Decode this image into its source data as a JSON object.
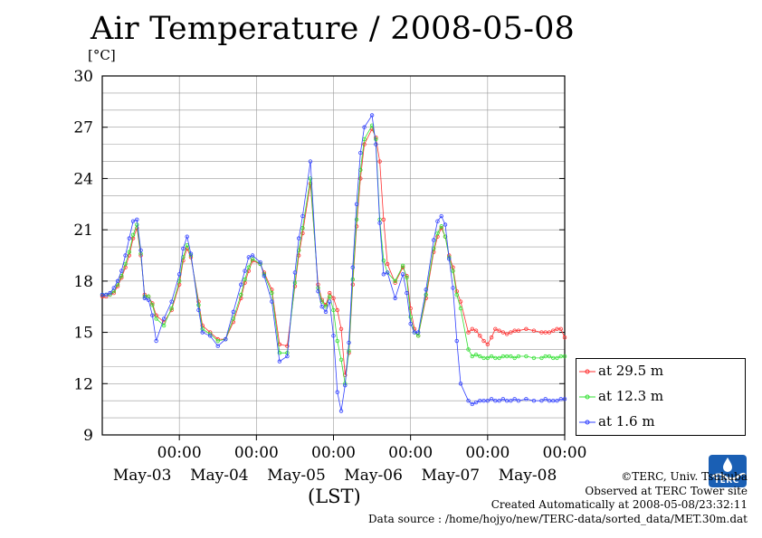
{
  "chart_data": {
    "type": "line",
    "title": "Air Temperature / 2008-05-08",
    "ylabel": "[°C]",
    "xlabel": "(LST)",
    "ylim": [
      9,
      30
    ],
    "yticks": [
      9,
      12,
      15,
      18,
      21,
      24,
      27,
      30
    ],
    "xlim": [
      0,
      6
    ],
    "grid": true,
    "legend_position": "right-bottom",
    "x_units": "days since 2008-05-02 12:00 LST",
    "xticks": [
      {
        "x": 1,
        "label": "00:00",
        "date": "May-03"
      },
      {
        "x": 2,
        "label": "00:00",
        "date": "May-04"
      },
      {
        "x": 3,
        "label": "00:00",
        "date": "May-05"
      },
      {
        "x": 4,
        "label": "00:00",
        "date": "May-06"
      },
      {
        "x": 5,
        "label": "00:00",
        "date": "May-07"
      },
      {
        "x": 6,
        "label": "00:00",
        "date": "May-08"
      }
    ],
    "series": [
      {
        "name": "at 29.5 m",
        "color": "#ff3030",
        "x": [
          0.0,
          0.05,
          0.1,
          0.15,
          0.2,
          0.25,
          0.3,
          0.35,
          0.4,
          0.45,
          0.5,
          0.55,
          0.6,
          0.65,
          0.7,
          0.8,
          0.9,
          1.0,
          1.05,
          1.1,
          1.15,
          1.25,
          1.3,
          1.4,
          1.5,
          1.6,
          1.7,
          1.8,
          1.85,
          1.9,
          1.95,
          2.05,
          2.1,
          2.2,
          2.3,
          2.4,
          2.5,
          2.55,
          2.6,
          2.7,
          2.8,
          2.85,
          2.9,
          2.95,
          3.0,
          3.05,
          3.1,
          3.15,
          3.2,
          3.25,
          3.3,
          3.35,
          3.4,
          3.5,
          3.55,
          3.6,
          3.65,
          3.7,
          3.8,
          3.9,
          3.95,
          4.0,
          4.05,
          4.1,
          4.2,
          4.3,
          4.35,
          4.4,
          4.45,
          4.5,
          4.55,
          4.6,
          4.65,
          4.75,
          4.8,
          4.85,
          4.9,
          4.95,
          5.0,
          5.05,
          5.1,
          5.15,
          5.2,
          5.25,
          5.3,
          5.35,
          5.4,
          5.5,
          5.6,
          5.7,
          5.75,
          5.8,
          5.85,
          5.9,
          5.95,
          6.0
        ],
        "y": [
          17.1,
          17.1,
          17.2,
          17.3,
          17.7,
          18.2,
          18.8,
          19.5,
          20.5,
          21.1,
          19.5,
          17.2,
          17.1,
          16.7,
          16.0,
          15.6,
          16.3,
          17.8,
          19.2,
          19.9,
          19.4,
          16.8,
          15.4,
          15.0,
          14.6,
          14.6,
          15.6,
          17.0,
          17.9,
          18.6,
          19.2,
          19.0,
          18.5,
          17.5,
          14.3,
          14.2,
          17.7,
          19.5,
          20.8,
          23.7,
          17.8,
          16.9,
          16.6,
          17.3,
          17.0,
          16.3,
          15.2,
          12.5,
          13.8,
          17.8,
          21.2,
          24.0,
          26.0,
          26.9,
          26.4,
          25.0,
          21.6,
          19.0,
          17.9,
          18.8,
          18.3,
          16.4,
          15.2,
          14.8,
          17.0,
          19.7,
          20.6,
          21.1,
          20.6,
          19.5,
          18.8,
          17.4,
          16.8,
          15.0,
          15.2,
          15.1,
          14.8,
          14.5,
          14.3,
          14.7,
          15.2,
          15.1,
          15.0,
          14.9,
          15.0,
          15.1,
          15.1,
          15.2,
          15.1,
          15.0,
          15.0,
          15.0,
          15.1,
          15.2,
          15.2,
          14.7
        ]
      },
      {
        "name": "at 12.3 m",
        "color": "#30e030",
        "x": [
          0.0,
          0.05,
          0.1,
          0.15,
          0.2,
          0.25,
          0.3,
          0.35,
          0.4,
          0.45,
          0.5,
          0.55,
          0.6,
          0.65,
          0.7,
          0.8,
          0.9,
          1.0,
          1.05,
          1.1,
          1.15,
          1.25,
          1.3,
          1.4,
          1.5,
          1.6,
          1.7,
          1.8,
          1.85,
          1.9,
          1.95,
          2.05,
          2.1,
          2.2,
          2.3,
          2.4,
          2.5,
          2.55,
          2.6,
          2.7,
          2.8,
          2.85,
          2.9,
          2.95,
          3.0,
          3.05,
          3.1,
          3.15,
          3.2,
          3.25,
          3.3,
          3.35,
          3.4,
          3.5,
          3.55,
          3.6,
          3.65,
          3.7,
          3.8,
          3.9,
          3.95,
          4.0,
          4.05,
          4.1,
          4.2,
          4.3,
          4.35,
          4.4,
          4.45,
          4.5,
          4.55,
          4.6,
          4.65,
          4.75,
          4.8,
          4.85,
          4.9,
          4.95,
          5.0,
          5.05,
          5.1,
          5.15,
          5.2,
          5.25,
          5.3,
          5.35,
          5.4,
          5.5,
          5.6,
          5.7,
          5.75,
          5.8,
          5.85,
          5.9,
          5.95,
          6.0
        ],
        "y": [
          17.2,
          17.2,
          17.2,
          17.4,
          17.8,
          18.3,
          19.0,
          19.7,
          20.7,
          21.3,
          19.6,
          17.1,
          17.1,
          16.6,
          15.8,
          15.4,
          16.4,
          18.0,
          19.4,
          20.1,
          19.5,
          16.6,
          15.2,
          14.9,
          14.5,
          14.6,
          15.8,
          17.2,
          18.1,
          18.8,
          19.3,
          19.0,
          18.4,
          17.3,
          13.8,
          13.8,
          17.9,
          19.8,
          21.1,
          24.0,
          17.6,
          16.8,
          16.5,
          17.1,
          16.3,
          14.5,
          13.4,
          12.0,
          13.9,
          18.1,
          21.6,
          24.5,
          26.3,
          27.1,
          26.3,
          21.6,
          19.2,
          18.5,
          18.0,
          18.9,
          18.2,
          15.9,
          15.0,
          14.8,
          17.2,
          19.9,
          20.8,
          21.2,
          20.6,
          19.4,
          18.6,
          17.2,
          16.4,
          14.0,
          13.6,
          13.7,
          13.6,
          13.5,
          13.5,
          13.6,
          13.5,
          13.5,
          13.6,
          13.6,
          13.6,
          13.5,
          13.6,
          13.6,
          13.5,
          13.5,
          13.6,
          13.6,
          13.5,
          13.5,
          13.6,
          13.6
        ]
      },
      {
        "name": "at 1.6 m",
        "color": "#3040ff",
        "x": [
          0.0,
          0.05,
          0.1,
          0.15,
          0.2,
          0.25,
          0.3,
          0.35,
          0.4,
          0.45,
          0.5,
          0.55,
          0.6,
          0.65,
          0.7,
          0.8,
          0.9,
          1.0,
          1.05,
          1.1,
          1.15,
          1.25,
          1.3,
          1.4,
          1.5,
          1.6,
          1.7,
          1.8,
          1.85,
          1.9,
          1.95,
          2.05,
          2.1,
          2.2,
          2.3,
          2.4,
          2.5,
          2.55,
          2.6,
          2.7,
          2.8,
          2.85,
          2.9,
          2.95,
          3.0,
          3.05,
          3.1,
          3.15,
          3.2,
          3.25,
          3.3,
          3.35,
          3.4,
          3.5,
          3.55,
          3.6,
          3.65,
          3.7,
          3.8,
          3.9,
          3.95,
          4.0,
          4.05,
          4.1,
          4.2,
          4.3,
          4.35,
          4.4,
          4.45,
          4.5,
          4.55,
          4.6,
          4.65,
          4.75,
          4.8,
          4.85,
          4.9,
          4.95,
          5.0,
          5.05,
          5.1,
          5.15,
          5.2,
          5.25,
          5.3,
          5.35,
          5.4,
          5.5,
          5.6,
          5.7,
          5.75,
          5.8,
          5.85,
          5.9,
          5.95,
          6.0
        ],
        "y": [
          17.2,
          17.2,
          17.3,
          17.6,
          18.0,
          18.6,
          19.5,
          20.5,
          21.5,
          21.6,
          19.8,
          17.0,
          16.9,
          16.0,
          14.5,
          15.8,
          16.8,
          18.4,
          19.9,
          20.6,
          19.6,
          16.3,
          15.0,
          14.8,
          14.2,
          14.6,
          16.2,
          17.8,
          18.6,
          19.4,
          19.5,
          19.1,
          18.3,
          16.8,
          13.3,
          13.6,
          18.5,
          20.5,
          21.8,
          25.0,
          17.4,
          16.5,
          16.2,
          16.8,
          14.8,
          11.5,
          10.4,
          11.9,
          14.4,
          18.8,
          22.5,
          25.5,
          27.0,
          27.7,
          26.0,
          21.4,
          18.4,
          18.5,
          17.0,
          18.4,
          17.3,
          15.5,
          15.0,
          15.0,
          17.5,
          20.4,
          21.5,
          21.8,
          21.3,
          19.3,
          17.6,
          14.5,
          12.0,
          11.0,
          10.8,
          10.9,
          11.0,
          11.0,
          11.0,
          11.1,
          11.0,
          11.0,
          11.1,
          11.0,
          11.0,
          11.1,
          11.0,
          11.1,
          11.0,
          11.0,
          11.1,
          11.0,
          11.0,
          11.0,
          11.1,
          11.1
        ]
      }
    ]
  },
  "footer": {
    "copyright": "©TERC, Univ. Tsukuba",
    "observed": "Observed at TERC Tower site",
    "created": "Created Automatically at 2008-05-08/23:32:11",
    "source": "Data source : /home/hojyo/new/TERC-data/sorted_data/MET.30m.dat",
    "logo_text": "TERC"
  }
}
